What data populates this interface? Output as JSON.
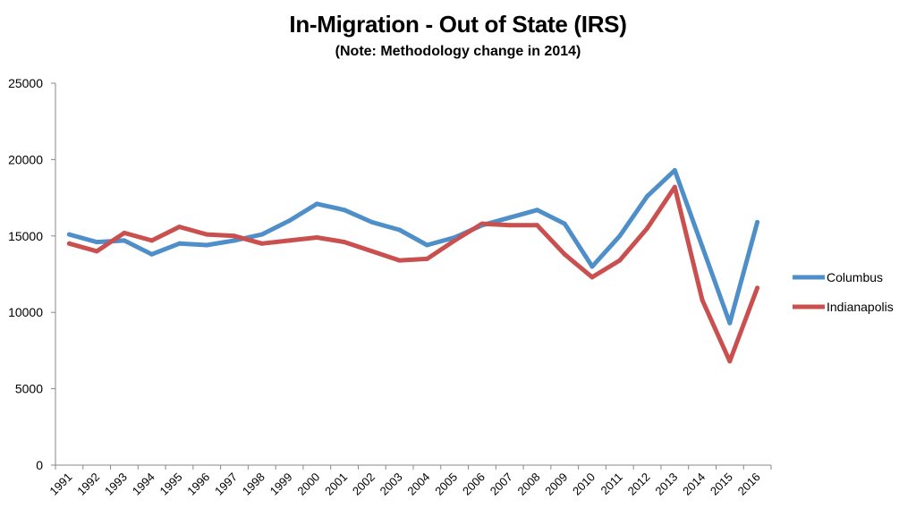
{
  "chart_data": {
    "type": "line",
    "title": "In-Migration - Out of State (IRS)",
    "subtitle": "(Note: Methodology change in 2014)",
    "xlabel": "",
    "ylabel": "",
    "ylim": [
      0,
      25000
    ],
    "y_ticks": [
      "0",
      "5000",
      "10000",
      "15000",
      "20000",
      "25000"
    ],
    "categories": [
      "1991",
      "1992",
      "1993",
      "1994",
      "1995",
      "1996",
      "1997",
      "1998",
      "1999",
      "2000",
      "2001",
      "2002",
      "2003",
      "2004",
      "2005",
      "2006",
      "2007",
      "2008",
      "2009",
      "2010",
      "2011",
      "2012",
      "2013",
      "2014",
      "2015",
      "2016"
    ],
    "grid": false,
    "legend_position": "right",
    "series": [
      {
        "name": "Columbus",
        "color": "#4f8fc9",
        "values": [
          15100,
          14600,
          14700,
          13800,
          14500,
          14400,
          14700,
          15100,
          16000,
          17100,
          16700,
          15900,
          15400,
          14400,
          14900,
          15700,
          16200,
          16700,
          15800,
          13000,
          15000,
          17600,
          19300,
          14300,
          9300,
          15900
        ]
      },
      {
        "name": "Indianapolis",
        "color": "#c9504f",
        "values": [
          14500,
          14000,
          15200,
          14700,
          15600,
          15100,
          15000,
          14500,
          14700,
          14900,
          14600,
          14000,
          13400,
          13500,
          14700,
          15800,
          15700,
          15700,
          13800,
          12300,
          13400,
          15500,
          18200,
          10800,
          6800,
          11600
        ]
      }
    ]
  }
}
